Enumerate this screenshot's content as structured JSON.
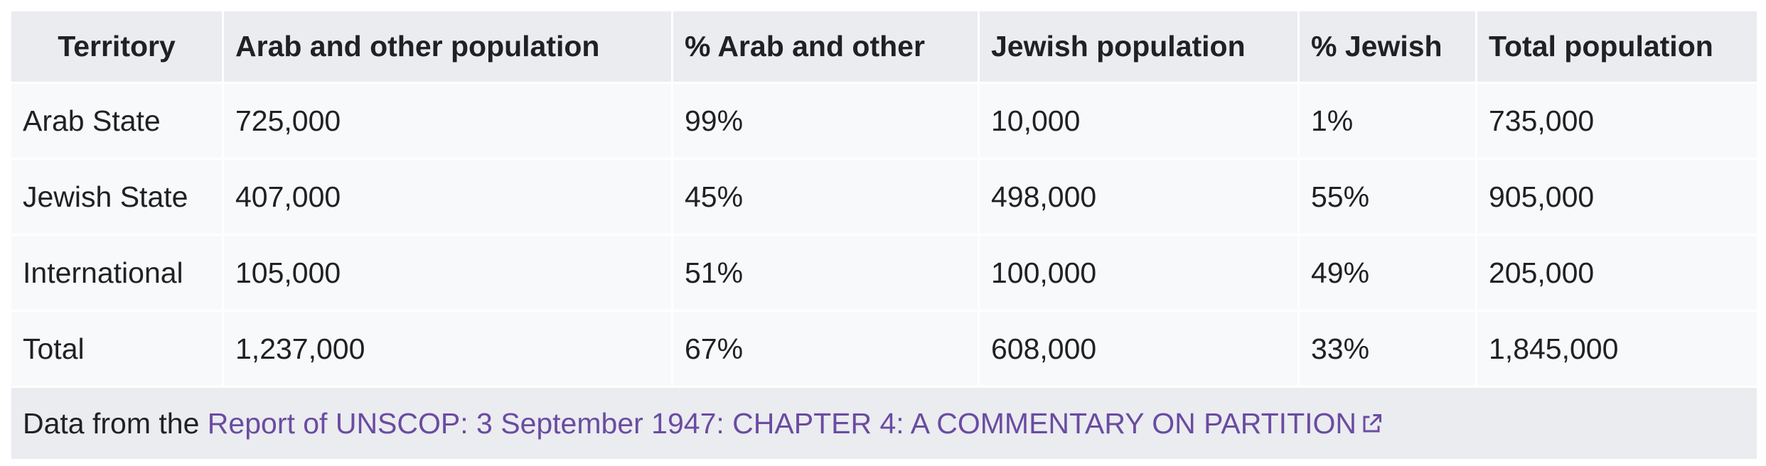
{
  "table": {
    "header": [
      "Territory",
      "Arab and other population",
      "% Arab and other",
      "Jewish population",
      "% Jewish",
      "Total population"
    ],
    "rows": [
      [
        "Arab State",
        "725,000",
        "99%",
        "10,000",
        "1%",
        "735,000"
      ],
      [
        "Jewish State",
        "407,000",
        "45%",
        "498,000",
        "55%",
        "905,000"
      ],
      [
        "International",
        "105,000",
        "51%",
        "100,000",
        "49%",
        "205,000"
      ],
      [
        "Total",
        "1,237,000",
        "67%",
        "608,000",
        "33%",
        "1,845,000"
      ]
    ],
    "footer": {
      "text": "Data from the",
      "link": "Report of UNSCOP: 3 September 1947: CHAPTER 4: A COMMENTARY ON PARTITION"
    }
  }
}
